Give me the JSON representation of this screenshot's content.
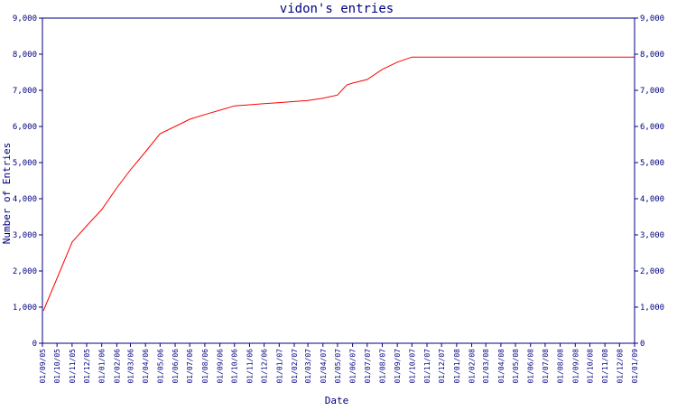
{
  "chart_data": {
    "type": "line",
    "title": "vidon's entries",
    "xlabel": "Date",
    "ylabel": "Number of Entries",
    "ylim": [
      0,
      9000
    ],
    "yticks": [
      0,
      1000,
      2000,
      3000,
      4000,
      5000,
      6000,
      7000,
      8000,
      9000
    ],
    "ytick_labels": [
      "0",
      "1,000",
      "2,000",
      "3,000",
      "4,000",
      "5,000",
      "6,000",
      "7,000",
      "8,000",
      "9,000"
    ],
    "xlim": [
      "2005-09-01",
      "2009-01-01"
    ],
    "x_ticks": [
      {
        "date": "2005-09-01",
        "label": "01/09/05"
      },
      {
        "date": "2005-10-01",
        "label": "01/10/05"
      },
      {
        "date": "2005-11-01",
        "label": "01/11/05"
      },
      {
        "date": "2005-12-01",
        "label": "01/12/05"
      },
      {
        "date": "2006-01-01",
        "label": "01/01/06"
      },
      {
        "date": "2006-02-01",
        "label": "01/02/06"
      },
      {
        "date": "2006-03-01",
        "label": "01/03/06"
      },
      {
        "date": "2006-04-01",
        "label": "01/04/06"
      },
      {
        "date": "2006-05-01",
        "label": "01/05/06"
      },
      {
        "date": "2006-06-01",
        "label": "01/06/06"
      },
      {
        "date": "2006-07-01",
        "label": "01/07/06"
      },
      {
        "date": "2006-08-01",
        "label": "01/08/06"
      },
      {
        "date": "2006-09-01",
        "label": "01/09/06"
      },
      {
        "date": "2006-10-01",
        "label": "01/10/06"
      },
      {
        "date": "2006-11-01",
        "label": "01/11/06"
      },
      {
        "date": "2006-12-01",
        "label": "01/12/06"
      },
      {
        "date": "2007-01-01",
        "label": "01/01/07"
      },
      {
        "date": "2007-02-01",
        "label": "01/02/07"
      },
      {
        "date": "2007-03-01",
        "label": "01/03/07"
      },
      {
        "date": "2007-04-01",
        "label": "01/04/07"
      },
      {
        "date": "2007-05-01",
        "label": "01/05/07"
      },
      {
        "date": "2007-06-01",
        "label": "01/06/07"
      },
      {
        "date": "2007-07-01",
        "label": "01/07/07"
      },
      {
        "date": "2007-08-01",
        "label": "01/08/07"
      },
      {
        "date": "2007-09-01",
        "label": "01/09/07"
      },
      {
        "date": "2007-10-01",
        "label": "01/10/07"
      },
      {
        "date": "2007-11-01",
        "label": "01/11/07"
      },
      {
        "date": "2007-12-01",
        "label": "01/12/07"
      },
      {
        "date": "2008-01-01",
        "label": "01/01/08"
      },
      {
        "date": "2008-02-01",
        "label": "01/02/08"
      },
      {
        "date": "2008-03-01",
        "label": "01/03/08"
      },
      {
        "date": "2008-04-01",
        "label": "01/04/08"
      },
      {
        "date": "2008-05-01",
        "label": "01/05/08"
      },
      {
        "date": "2008-06-01",
        "label": "01/06/08"
      },
      {
        "date": "2008-07-01",
        "label": "01/07/08"
      },
      {
        "date": "2008-08-01",
        "label": "01/08/08"
      },
      {
        "date": "2008-09-01",
        "label": "01/09/08"
      },
      {
        "date": "2008-10-01",
        "label": "01/10/08"
      },
      {
        "date": "2008-11-01",
        "label": "01/11/08"
      },
      {
        "date": "2008-12-01",
        "label": "01/12/08"
      },
      {
        "date": "2009-01-01",
        "label": "01/01/09"
      }
    ],
    "grid": false,
    "legend": "none",
    "colors": {
      "line": "#ff0000",
      "axes": "#000080",
      "text": "#000080"
    },
    "series": [
      {
        "points": [
          {
            "x": "2005-09-03",
            "y": 900
          },
          {
            "x": "2005-10-01",
            "y": 1800
          },
          {
            "x": "2005-11-01",
            "y": 2800
          },
          {
            "x": "2005-12-01",
            "y": 3250
          },
          {
            "x": "2006-01-01",
            "y": 3700
          },
          {
            "x": "2006-02-01",
            "y": 4300
          },
          {
            "x": "2006-03-01",
            "y": 4800
          },
          {
            "x": "2006-04-01",
            "y": 5300
          },
          {
            "x": "2006-05-01",
            "y": 5800
          },
          {
            "x": "2006-06-01",
            "y": 6000
          },
          {
            "x": "2006-07-01",
            "y": 6200
          },
          {
            "x": "2006-08-01",
            "y": 6330
          },
          {
            "x": "2006-09-01",
            "y": 6450
          },
          {
            "x": "2006-10-01",
            "y": 6570
          },
          {
            "x": "2006-11-01",
            "y": 6600
          },
          {
            "x": "2006-12-01",
            "y": 6630
          },
          {
            "x": "2007-01-01",
            "y": 6660
          },
          {
            "x": "2007-02-01",
            "y": 6690
          },
          {
            "x": "2007-03-01",
            "y": 6720
          },
          {
            "x": "2007-04-01",
            "y": 6780
          },
          {
            "x": "2007-05-01",
            "y": 6870
          },
          {
            "x": "2007-05-20",
            "y": 7150
          },
          {
            "x": "2007-06-01",
            "y": 7200
          },
          {
            "x": "2007-07-01",
            "y": 7300
          },
          {
            "x": "2007-08-01",
            "y": 7580
          },
          {
            "x": "2007-09-01",
            "y": 7780
          },
          {
            "x": "2007-10-01",
            "y": 7920
          },
          {
            "x": "2007-11-01",
            "y": 7920
          },
          {
            "x": "2008-01-01",
            "y": 7920
          },
          {
            "x": "2008-06-01",
            "y": 7920
          },
          {
            "x": "2008-12-01",
            "y": 7920
          },
          {
            "x": "2008-12-31",
            "y": 7920
          }
        ]
      }
    ]
  }
}
